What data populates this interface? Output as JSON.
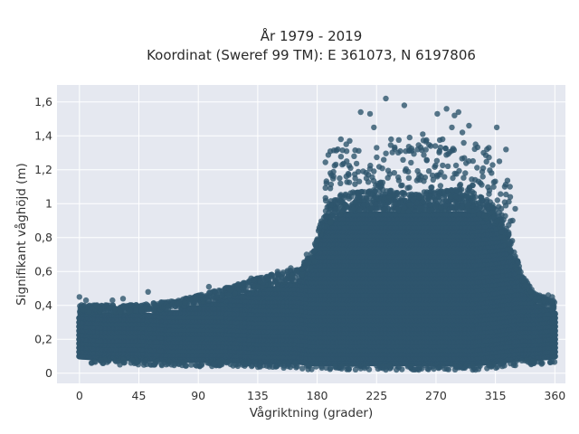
{
  "chart_data": {
    "type": "scatter",
    "title_line1": "År 1979 - 2019",
    "title_line2": "Koordinat (Sweref 99 TM): E 361073, N 6197806",
    "xlabel": "Vågriktning (grader)",
    "ylabel": "Signifikant våghöjd (m)",
    "xlim": [
      -17,
      368
    ],
    "ylim": [
      -0.06,
      1.7
    ],
    "xticks": [
      0,
      45,
      90,
      135,
      180,
      225,
      270,
      315,
      360
    ],
    "xtick_labels": [
      "0",
      "45",
      "90",
      "135",
      "180",
      "225",
      "270",
      "315",
      "360"
    ],
    "yticks": [
      0,
      0.2,
      0.4,
      0.6,
      0.8,
      1.0,
      1.2,
      1.4,
      1.6
    ],
    "ytick_labels": [
      "0",
      "0,2",
      "0,4",
      "0,6",
      "0,8",
      "1",
      "1,2",
      "1,4",
      "1,6"
    ],
    "grid": true,
    "marker_color": "#2e556d",
    "background_color": "#e5e8f0",
    "envelope": {
      "direction": [
        0,
        20,
        45,
        70,
        90,
        110,
        135,
        150,
        165,
        175,
        185,
        200,
        225,
        250,
        270,
        290,
        300,
        315,
        325,
        335,
        345,
        360
      ],
      "typical_max": [
        0.36,
        0.36,
        0.36,
        0.38,
        0.41,
        0.45,
        0.5,
        0.53,
        0.55,
        0.62,
        0.86,
        0.95,
        0.97,
        0.95,
        0.96,
        0.97,
        0.95,
        0.88,
        0.74,
        0.52,
        0.42,
        0.38
      ],
      "typical_min": [
        0.09,
        0.08,
        0.08,
        0.07,
        0.07,
        0.07,
        0.06,
        0.06,
        0.06,
        0.05,
        0.05,
        0.05,
        0.05,
        0.05,
        0.05,
        0.05,
        0.05,
        0.06,
        0.07,
        0.08,
        0.08,
        0.09
      ]
    },
    "outliers": [
      {
        "x": 232,
        "y": 1.62
      },
      {
        "x": 213,
        "y": 1.54
      },
      {
        "x": 220,
        "y": 1.53
      },
      {
        "x": 246,
        "y": 1.58
      },
      {
        "x": 278,
        "y": 1.56
      },
      {
        "x": 284,
        "y": 1.52
      },
      {
        "x": 287,
        "y": 1.54
      },
      {
        "x": 271,
        "y": 1.53
      },
      {
        "x": 223,
        "y": 1.45
      },
      {
        "x": 316,
        "y": 1.45
      },
      {
        "x": 198,
        "y": 1.38
      },
      {
        "x": 236,
        "y": 1.38
      },
      {
        "x": 290,
        "y": 1.42
      },
      {
        "x": 282,
        "y": 1.45
      },
      {
        "x": 300,
        "y": 1.35
      },
      {
        "x": 306,
        "y": 1.3
      },
      {
        "x": 310,
        "y": 1.33
      },
      {
        "x": 323,
        "y": 1.32
      },
      {
        "x": 318,
        "y": 1.25
      },
      {
        "x": 266,
        "y": 1.34
      },
      {
        "x": 256,
        "y": 1.32
      },
      {
        "x": 243,
        "y": 1.31
      },
      {
        "x": 250,
        "y": 1.39
      },
      {
        "x": 225,
        "y": 1.33
      },
      {
        "x": 208,
        "y": 1.28
      },
      {
        "x": 199,
        "y": 1.23
      },
      {
        "x": 190,
        "y": 1.18
      },
      {
        "x": 187,
        "y": 1.12
      },
      {
        "x": 202,
        "y": 1.35
      },
      {
        "x": 260,
        "y": 1.41
      },
      {
        "x": 275,
        "y": 1.38
      },
      {
        "x": 295,
        "y": 1.46
      },
      {
        "x": 180,
        "y": 0.78
      },
      {
        "x": 172,
        "y": 0.7
      },
      {
        "x": 178,
        "y": 0.66
      },
      {
        "x": 160,
        "y": 0.62
      },
      {
        "x": 150,
        "y": 0.6
      },
      {
        "x": 142,
        "y": 0.57
      },
      {
        "x": 130,
        "y": 0.56
      },
      {
        "x": 120,
        "y": 0.52
      },
      {
        "x": 98,
        "y": 0.51
      },
      {
        "x": 88,
        "y": 0.44
      },
      {
        "x": 52,
        "y": 0.48
      },
      {
        "x": 33,
        "y": 0.44
      },
      {
        "x": 25,
        "y": 0.43
      },
      {
        "x": 0,
        "y": 0.45
      },
      {
        "x": 5,
        "y": 0.43
      },
      {
        "x": 355,
        "y": 0.46
      },
      {
        "x": 358,
        "y": 0.45
      },
      {
        "x": 342,
        "y": 0.48
      },
      {
        "x": 338,
        "y": 0.52
      },
      {
        "x": 335,
        "y": 0.57
      },
      {
        "x": 330,
        "y": 0.63
      },
      {
        "x": 330,
        "y": 0.68
      },
      {
        "x": 325,
        "y": 0.82
      },
      {
        "x": 328,
        "y": 0.9
      },
      {
        "x": 322,
        "y": 1.1
      },
      {
        "x": 326,
        "y": 1.1
      },
      {
        "x": 330,
        "y": 0.97
      },
      {
        "x": 232,
        "y": 0.02
      },
      {
        "x": 300,
        "y": 0.02
      },
      {
        "x": 272,
        "y": 0.03
      },
      {
        "x": 190,
        "y": 0.03
      },
      {
        "x": 240,
        "y": 0.02
      }
    ]
  }
}
